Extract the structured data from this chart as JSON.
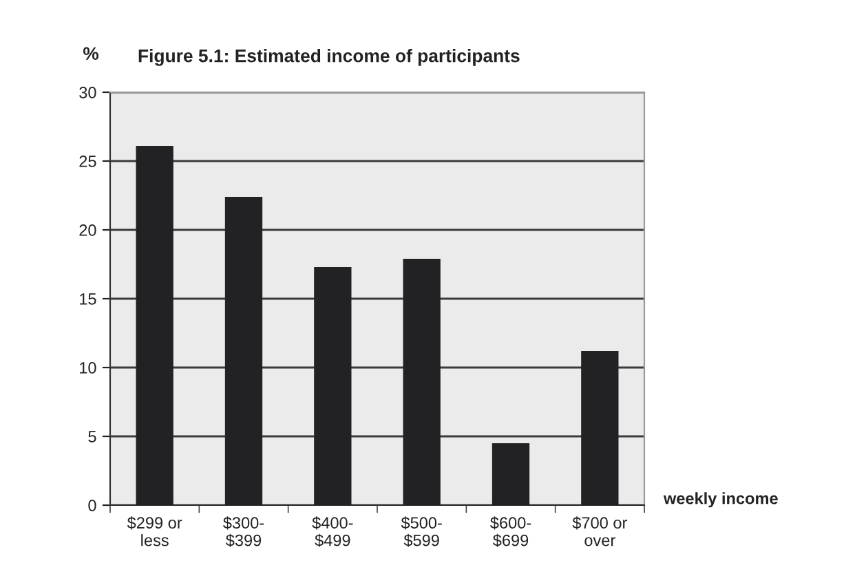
{
  "chart_data": {
    "type": "bar",
    "title": "Figure 5.1: Estimated income of participants",
    "ylabel": "%",
    "xlabel": "weekly income",
    "categories": [
      "$299 or\nless",
      "$300-\n$399",
      "$400-\n$499",
      "$500-\n$599",
      "$600-\n$699",
      "$700 or\nover"
    ],
    "values": [
      26.1,
      22.4,
      17.3,
      17.9,
      4.5,
      11.2
    ],
    "color": "#222225",
    "ylim": [
      0,
      30
    ],
    "yticks": [
      0,
      5,
      10,
      15,
      20,
      25,
      30
    ],
    "grid": "y"
  }
}
